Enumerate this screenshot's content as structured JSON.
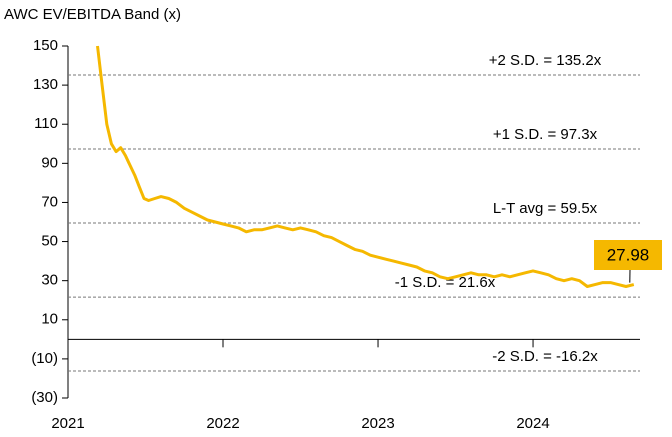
{
  "chart_data": {
    "type": "line",
    "title": "AWC EV/EBITDA  Band (x)",
    "x": [
      2021.19,
      2021.22,
      2021.25,
      2021.28,
      2021.31,
      2021.34,
      2021.37,
      2021.4,
      2021.43,
      2021.46,
      2021.49,
      2021.52,
      2021.56,
      2021.6,
      2021.65,
      2021.7,
      2021.75,
      2021.8,
      2021.85,
      2021.9,
      2021.95,
      2022.0,
      2022.05,
      2022.1,
      2022.15,
      2022.2,
      2022.25,
      2022.3,
      2022.35,
      2022.4,
      2022.45,
      2022.5,
      2022.55,
      2022.6,
      2022.65,
      2022.7,
      2022.75,
      2022.8,
      2022.85,
      2022.9,
      2022.95,
      2023.0,
      2023.05,
      2023.1,
      2023.15,
      2023.2,
      2023.25,
      2023.3,
      2023.35,
      2023.4,
      2023.45,
      2023.5,
      2023.55,
      2023.6,
      2023.65,
      2023.7,
      2023.75,
      2023.8,
      2023.85,
      2023.9,
      2023.95,
      2024.0,
      2024.05,
      2024.1,
      2024.15,
      2024.2,
      2024.25,
      2024.3,
      2024.35,
      2024.4,
      2024.45,
      2024.5,
      2024.55,
      2024.6,
      2024.65
    ],
    "values": [
      150,
      130,
      110,
      100,
      96,
      98,
      94,
      89,
      84,
      78,
      72,
      71,
      72,
      73,
      72,
      70,
      67,
      65,
      63,
      61,
      60,
      59,
      58,
      57,
      55,
      56,
      56,
      57,
      58,
      57,
      56,
      57,
      56,
      55,
      53,
      52,
      50,
      48,
      46,
      45,
      43,
      42,
      41,
      40,
      39,
      38,
      37,
      35,
      34,
      32,
      31,
      32,
      33,
      34,
      33,
      33,
      32,
      33,
      32,
      33,
      34,
      35,
      34,
      33,
      31,
      30,
      31,
      30,
      27,
      28,
      29,
      29,
      28,
      27,
      28
    ],
    "color": "#f5b800",
    "xlim": [
      2021,
      2024.69
    ],
    "xticks": [
      2021,
      2022,
      2023,
      2024
    ],
    "ylim": [
      -30,
      150
    ],
    "yticks": [
      150,
      130,
      110,
      90,
      70,
      50,
      30,
      10,
      {
        "value": -10,
        "label": "(10)"
      },
      {
        "value": -30,
        "label": "(30)"
      }
    ],
    "reference_lines": [
      {
        "label": "+2 S.D. = 135.2x",
        "value": 135.2
      },
      {
        "label": "+1 S.D. = 97.3x",
        "value": 97.3
      },
      {
        "label": "L-T avg = 59.5x",
        "value": 59.5
      },
      {
        "label": "-1 S.D. = 21.6x",
        "value": 21.6
      },
      {
        "label": "-2 S.D. = -16.2x",
        "value": -16.2
      }
    ],
    "annotation": {
      "value": 27.98,
      "label": "27.98"
    }
  }
}
